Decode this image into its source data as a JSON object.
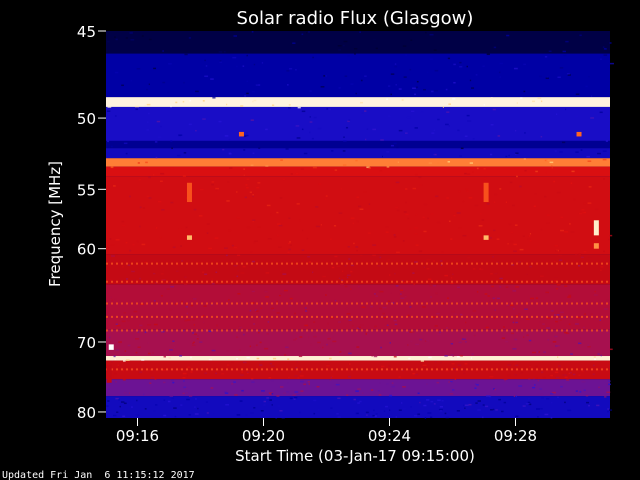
{
  "chart_data": {
    "type": "heatmap",
    "title": "Solar radio Flux (Glasgow)",
    "xlabel": "Start Time (03-Jan-17 09:15:00)",
    "ylabel": "Frequency [MHz]",
    "x_range_seconds": [
      0,
      960
    ],
    "x_ticks": [
      {
        "label": "09:16",
        "t": 60
      },
      {
        "label": "09:20",
        "t": 300
      },
      {
        "label": "09:24",
        "t": 540
      },
      {
        "label": "09:28",
        "t": 780
      }
    ],
    "y_range_mhz": [
      45,
      81
    ],
    "y_ticks": [
      45,
      50,
      55,
      60,
      70,
      80
    ],
    "y_scale": "reciprocal",
    "colormap": [
      "#000033",
      "#0000aa",
      "#2a16d8",
      "#a0115e",
      "#c40a14",
      "#e01010",
      "#ff6420",
      "#ffd17a",
      "#ffffff"
    ],
    "frequency_bands_mhz": [
      {
        "from": 45.0,
        "to": 46.2,
        "level": 0.02
      },
      {
        "from": 46.2,
        "to": 48.7,
        "level": 0.12
      },
      {
        "from": 48.7,
        "to": 49.3,
        "level": 0.97
      },
      {
        "from": 49.3,
        "to": 51.5,
        "level": 0.2
      },
      {
        "from": 51.5,
        "to": 52.0,
        "level": 0.1
      },
      {
        "from": 52.0,
        "to": 52.7,
        "level": 0.18
      },
      {
        "from": 52.7,
        "to": 53.3,
        "level": 0.78
      },
      {
        "from": 53.3,
        "to": 54.0,
        "level": 0.6
      },
      {
        "from": 54.0,
        "to": 60.5,
        "level": 0.56
      },
      {
        "from": 60.5,
        "to": 63.5,
        "level": 0.5
      },
      {
        "from": 63.5,
        "to": 68.5,
        "level": 0.44
      },
      {
        "from": 68.5,
        "to": 71.8,
        "level": 0.4
      },
      {
        "from": 71.8,
        "to": 72.4,
        "level": 0.96
      },
      {
        "from": 72.4,
        "to": 75.0,
        "level": 0.52
      },
      {
        "from": 75.0,
        "to": 77.5,
        "level": 0.32
      },
      {
        "from": 77.5,
        "to": 81.0,
        "level": 0.18
      }
    ],
    "time_features": [
      {
        "t": 159,
        "f_from": 54.5,
        "f_to": 56.0,
        "level": 0.72
      },
      {
        "t": 159,
        "f_from": 58.8,
        "f_to": 59.2,
        "level": 0.85
      },
      {
        "t": 724,
        "f_from": 54.5,
        "f_to": 56.0,
        "level": 0.72
      },
      {
        "t": 724,
        "f_from": 58.8,
        "f_to": 59.2,
        "level": 0.85
      },
      {
        "t": 934,
        "f_from": 57.5,
        "f_to": 58.8,
        "level": 0.95
      },
      {
        "t": 934,
        "f_from": 59.5,
        "f_to": 60.0,
        "level": 0.8
      },
      {
        "t": 258,
        "f_from": 50.9,
        "f_to": 51.2,
        "level": 0.75
      },
      {
        "t": 901,
        "f_from": 50.9,
        "f_to": 51.2,
        "level": 0.75
      },
      {
        "t": 10,
        "f_from": 70.3,
        "f_to": 71.0,
        "level": 1.0
      },
      {
        "t": 6,
        "f_from": 73.0,
        "f_to": 75.5,
        "level": 0.5
      }
    ]
  },
  "footer": {
    "updated": "Updated Fri Jan  6 11:15:12 2017"
  }
}
